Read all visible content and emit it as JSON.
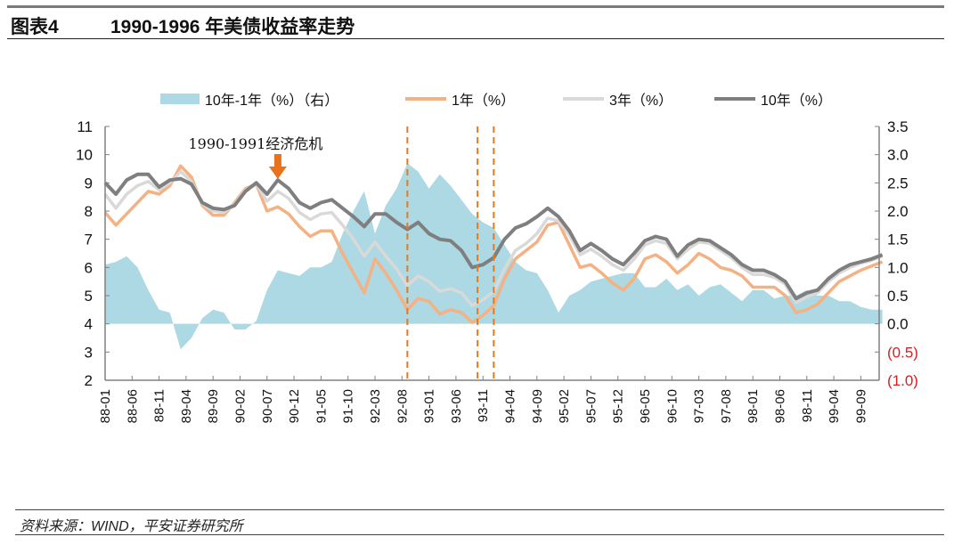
{
  "header": {
    "figure_no": "图表4",
    "title": "1990-1996 年美债收益率走势"
  },
  "footer": {
    "source": "资料来源：WIND，平安证券研究所"
  },
  "chart_data": {
    "type": "line",
    "title": "1990-1996 年美债收益率走势",
    "colors": {
      "spread": "#acd9e3",
      "y1": "#f4b183",
      "y3": "#d9d9d9",
      "y10": "#7f7f7f",
      "dashed": "#e07b28",
      "annotation_arrow": "#e8731c",
      "negative_label": "#d62020"
    },
    "legend_placement": "top",
    "grid": false,
    "left_axis": {
      "ylim": [
        2,
        11
      ],
      "ticks": [
        "11",
        "10",
        "9",
        "8",
        "7",
        "6",
        "5",
        "4",
        "3",
        "2"
      ]
    },
    "right_axis": {
      "ylim": [
        -1.0,
        3.5
      ],
      "ticks": [
        {
          "v": 3.5,
          "t": "3.5"
        },
        {
          "v": 3.0,
          "t": "3.0"
        },
        {
          "v": 2.5,
          "t": "2.5"
        },
        {
          "v": 2.0,
          "t": "2.0"
        },
        {
          "v": 1.5,
          "t": "1.5"
        },
        {
          "v": 1.0,
          "t": "1.0"
        },
        {
          "v": 0.5,
          "t": "0.5"
        },
        {
          "v": 0.0,
          "t": "0.0"
        },
        {
          "v": -0.5,
          "t": "(0.5)"
        },
        {
          "v": -1.0,
          "t": "(1.0)"
        }
      ]
    },
    "x_tick_labels": [
      "88-01",
      "88-06",
      "88-11",
      "89-04",
      "89-09",
      "90-02",
      "90-07",
      "90-12",
      "91-05",
      "91-10",
      "92-03",
      "92-08",
      "93-01",
      "93-06",
      "93-11",
      "94-04",
      "94-09",
      "95-02",
      "95-07",
      "95-12",
      "96-05",
      "96-10",
      "97-03",
      "97-08",
      "98-01",
      "98-06",
      "98-11",
      "99-04",
      "99-09"
    ],
    "x": [
      "88-01",
      "88-03",
      "88-05",
      "88-07",
      "88-09",
      "88-11",
      "89-01",
      "89-03",
      "89-05",
      "89-07",
      "89-09",
      "89-11",
      "90-01",
      "90-03",
      "90-05",
      "90-07",
      "90-09",
      "90-11",
      "91-01",
      "91-03",
      "91-05",
      "91-07",
      "91-09",
      "91-11",
      "92-01",
      "92-03",
      "92-05",
      "92-07",
      "92-09",
      "92-11",
      "93-01",
      "93-03",
      "93-05",
      "93-07",
      "93-09",
      "93-11",
      "94-01",
      "94-03",
      "94-05",
      "94-07",
      "94-09",
      "94-11",
      "95-01",
      "95-03",
      "95-05",
      "95-07",
      "95-09",
      "95-11",
      "96-01",
      "96-03",
      "96-05",
      "96-07",
      "96-09",
      "96-11",
      "97-01",
      "97-03",
      "97-05",
      "97-07",
      "97-09",
      "97-11",
      "98-01",
      "98-03",
      "98-05",
      "98-07",
      "98-09",
      "98-11",
      "99-01",
      "99-03",
      "99-05",
      "99-07",
      "99-09",
      "99-11",
      "00-01"
    ],
    "series": [
      {
        "name": "10年-1年（%）（右）",
        "kind": "area",
        "axis": "right",
        "values": [
          1.05,
          1.1,
          1.2,
          1.0,
          0.6,
          0.25,
          0.2,
          -0.45,
          -0.25,
          0.1,
          0.25,
          0.2,
          -0.1,
          -0.1,
          0.05,
          0.6,
          0.95,
          0.9,
          0.85,
          1.0,
          1.0,
          1.1,
          1.6,
          2.0,
          2.35,
          1.6,
          2.1,
          2.4,
          2.85,
          2.7,
          2.4,
          2.65,
          2.45,
          2.2,
          1.95,
          1.8,
          1.7,
          1.4,
          1.1,
          0.95,
          0.9,
          0.6,
          0.2,
          0.5,
          0.6,
          0.75,
          0.8,
          0.85,
          0.9,
          0.9,
          0.65,
          0.65,
          0.8,
          0.6,
          0.7,
          0.5,
          0.65,
          0.7,
          0.55,
          0.4,
          0.6,
          0.6,
          0.45,
          0.5,
          0.5,
          0.6,
          0.5,
          0.5,
          0.4,
          0.4,
          0.3,
          0.25,
          0.25
        ]
      },
      {
        "name": "1年（%）",
        "kind": "line",
        "axis": "left",
        "color_key": "y1",
        "values": [
          7.95,
          7.5,
          7.9,
          8.3,
          8.7,
          8.6,
          8.9,
          9.6,
          9.2,
          8.2,
          7.85,
          7.85,
          8.3,
          8.8,
          8.95,
          8.0,
          8.15,
          7.9,
          7.45,
          7.1,
          7.3,
          7.3,
          6.5,
          5.8,
          5.1,
          6.3,
          5.8,
          5.2,
          4.5,
          4.9,
          4.8,
          4.35,
          4.5,
          4.4,
          4.05,
          4.3,
          4.65,
          5.6,
          6.3,
          6.6,
          6.9,
          7.5,
          7.6,
          6.8,
          6.0,
          6.1,
          5.8,
          5.45,
          5.2,
          5.6,
          6.3,
          6.45,
          6.2,
          5.8,
          6.1,
          6.5,
          6.3,
          6.0,
          5.9,
          5.7,
          5.3,
          5.3,
          5.3,
          5.0,
          4.4,
          4.5,
          4.7,
          5.1,
          5.5,
          5.7,
          5.9,
          6.05,
          6.2
        ]
      },
      {
        "name": "3年（%）",
        "kind": "line",
        "axis": "left",
        "color_key": "y3",
        "values": [
          8.6,
          8.1,
          8.6,
          8.9,
          9.05,
          8.75,
          9.0,
          9.4,
          9.05,
          8.25,
          8.0,
          7.95,
          8.25,
          8.75,
          8.95,
          8.35,
          8.7,
          8.45,
          7.95,
          7.7,
          7.9,
          7.95,
          7.5,
          7.0,
          6.4,
          6.9,
          6.4,
          5.95,
          5.35,
          5.7,
          5.5,
          5.15,
          5.25,
          5.1,
          4.65,
          4.85,
          5.15,
          5.95,
          6.6,
          6.85,
          7.2,
          7.75,
          7.65,
          7.15,
          6.45,
          6.65,
          6.4,
          6.1,
          5.9,
          6.3,
          6.8,
          6.95,
          6.85,
          6.3,
          6.65,
          6.9,
          6.85,
          6.6,
          6.35,
          6.0,
          5.75,
          5.75,
          5.65,
          5.4,
          4.75,
          4.95,
          5.1,
          5.5,
          5.8,
          6.0,
          6.15,
          6.25,
          6.4
        ]
      },
      {
        "name": "10年（%）",
        "kind": "line",
        "axis": "left",
        "color_key": "y10",
        "values": [
          9.0,
          8.6,
          9.1,
          9.3,
          9.3,
          8.85,
          9.1,
          9.15,
          8.95,
          8.3,
          8.1,
          8.05,
          8.2,
          8.7,
          9.0,
          8.6,
          9.1,
          8.8,
          8.3,
          8.1,
          8.3,
          8.4,
          8.1,
          7.8,
          7.45,
          7.9,
          7.9,
          7.6,
          7.35,
          7.6,
          7.2,
          7.0,
          6.95,
          6.6,
          6.0,
          6.1,
          6.35,
          7.0,
          7.4,
          7.55,
          7.8,
          8.1,
          7.8,
          7.3,
          6.6,
          6.85,
          6.6,
          6.3,
          6.1,
          6.5,
          6.95,
          7.1,
          7.0,
          6.4,
          6.8,
          7.0,
          6.95,
          6.7,
          6.45,
          6.1,
          5.9,
          5.9,
          5.75,
          5.5,
          4.9,
          5.1,
          5.2,
          5.6,
          5.9,
          6.1,
          6.2,
          6.3,
          6.45
        ]
      }
    ],
    "reference_lines": [
      {
        "x": "92-09",
        "style": "dashed"
      },
      {
        "x": "93-10",
        "style": "dashed"
      },
      {
        "x": "94-01",
        "style": "dashed"
      }
    ],
    "annotations": [
      {
        "text": "1990-1991经济危机",
        "x": "90-09",
        "marker": "down-arrow"
      }
    ]
  }
}
